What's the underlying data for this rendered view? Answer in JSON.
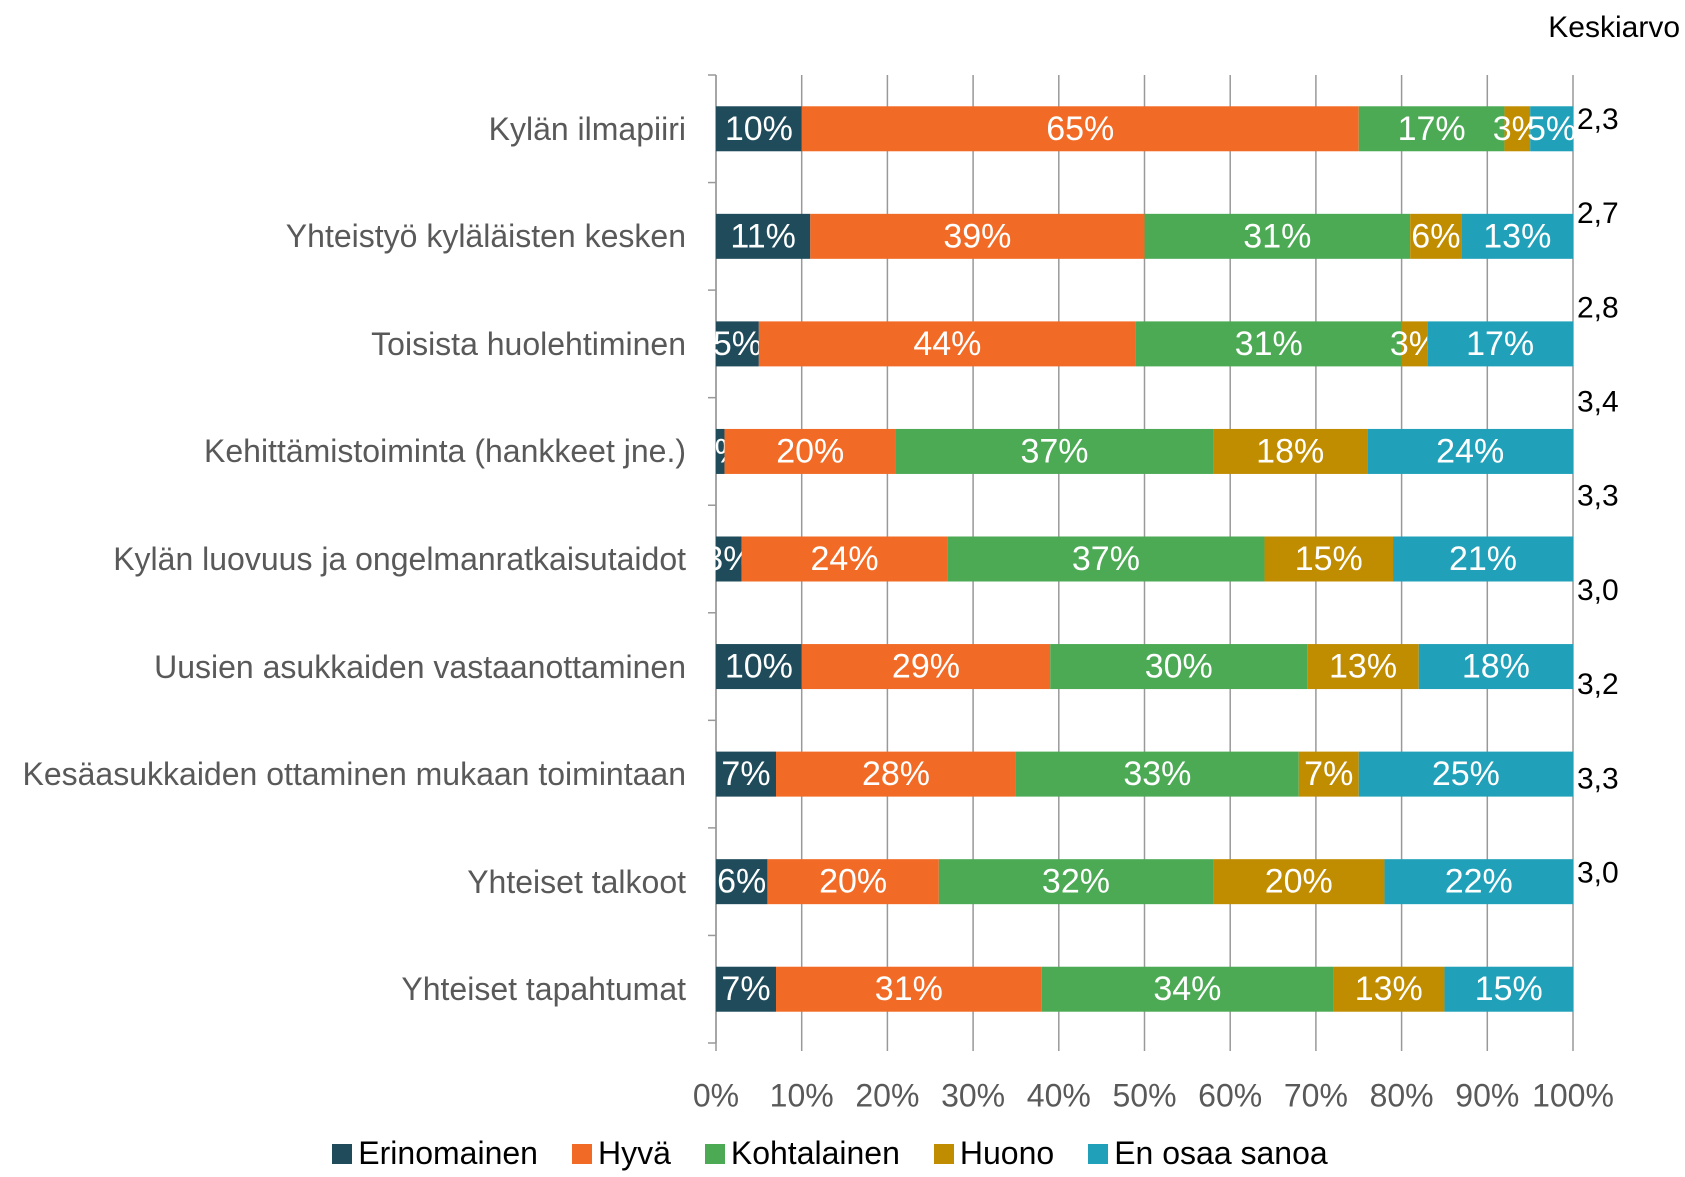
{
  "chart_data": {
    "type": "stacked-barh",
    "categories": [
      "Kylän ilmapiiri",
      "Yhteistyö kyläläisten kesken",
      "Toisista huolehtiminen",
      "Kehittämistoiminta (hankkeet jne.)",
      "Kylän luovuus ja ongelmanratkaisutaidot",
      "Uusien asukkaiden vastaanottaminen",
      "Kesäasukkaiden ottaminen mukaan toimintaan",
      "Yhteiset talkoot",
      "Yhteiset tapahtumat"
    ],
    "series": [
      {
        "name": "Erinomainen",
        "color": "#1f4b5a",
        "values": [
          10,
          11,
          5,
          1,
          3,
          10,
          7,
          6,
          7
        ],
        "value_labels": [
          "10%",
          "11%",
          "5%",
          "1%",
          "3%",
          "10%",
          "7%",
          "6%",
          "7%"
        ]
      },
      {
        "name": "Hyvä",
        "color": "#f26b26",
        "values": [
          65,
          39,
          44,
          20,
          24,
          29,
          28,
          20,
          31
        ],
        "value_labels": [
          "65%",
          "39%",
          "44%",
          "20%",
          "24%",
          "29%",
          "28%",
          "20%",
          "31%"
        ]
      },
      {
        "name": "Kohtalainen",
        "color": "#4caa55",
        "values": [
          17,
          31,
          31,
          37,
          37,
          30,
          33,
          32,
          34
        ],
        "value_labels": [
          "17%",
          "31%",
          "31%",
          "37%",
          "37%",
          "30%",
          "33%",
          "32%",
          "34%"
        ]
      },
      {
        "name": "Huono",
        "color": "#c08c00",
        "values": [
          3,
          6,
          3,
          18,
          15,
          13,
          7,
          20,
          13
        ],
        "value_labels": [
          "3%",
          "6%",
          "3%",
          "18%",
          "15%",
          "13%",
          "7%",
          "20%",
          "13%"
        ]
      },
      {
        "name": "En osaa sanoa",
        "color": "#21a1b9",
        "values": [
          5,
          13,
          17,
          24,
          21,
          18,
          25,
          22,
          15
        ],
        "value_labels": [
          "5%",
          "13%",
          "17%",
          "24%",
          "21%",
          "18%",
          "25%",
          "22%",
          "15%"
        ]
      }
    ],
    "xlim": [
      0,
      100
    ],
    "xticks": [
      {
        "value": 0,
        "label": "0%"
      },
      {
        "value": 10,
        "label": "10%"
      },
      {
        "value": 20,
        "label": "20%"
      },
      {
        "value": 30,
        "label": "30%"
      },
      {
        "value": 40,
        "label": "40%"
      },
      {
        "value": 50,
        "label": "50%"
      },
      {
        "value": 60,
        "label": "60%"
      },
      {
        "value": 70,
        "label": "70%"
      },
      {
        "value": 80,
        "label": "80%"
      },
      {
        "value": 90,
        "label": "90%"
      },
      {
        "value": 100,
        "label": "100%"
      }
    ],
    "grid": true,
    "legend": "bottom",
    "averages": {
      "title": "Keskiarvo",
      "values": [
        2.3,
        2.7,
        2.8,
        3.4,
        3.3,
        3.0,
        3.2,
        3.3,
        3.0
      ],
      "value_labels": [
        "2,3",
        "2,7",
        "2,8",
        "3,4",
        "3,3",
        "3,0",
        "3,2",
        "3,3",
        "3,0"
      ]
    }
  }
}
